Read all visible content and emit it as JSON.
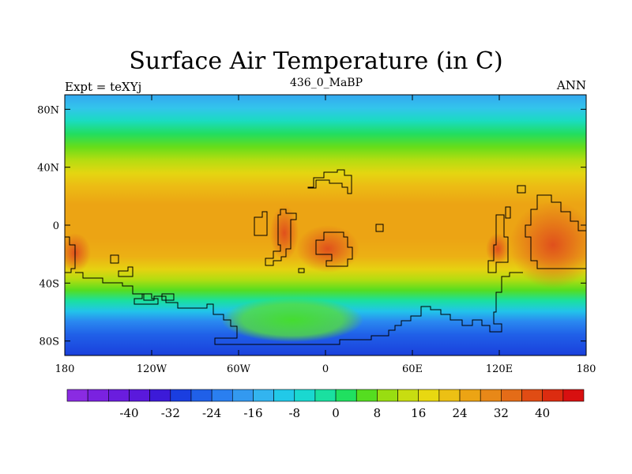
{
  "figure": {
    "title": "Surface Air Temperature (in C)",
    "left_label": "Expt = teXYj",
    "center_label": "436_0_MaBP",
    "right_label": "ANN"
  },
  "axes": {
    "lon_ticks": [
      {
        "label": "180",
        "lon": -180
      },
      {
        "label": "120W",
        "lon": -120
      },
      {
        "label": "60W",
        "lon": -60
      },
      {
        "label": "0",
        "lon": 0
      },
      {
        "label": "60E",
        "lon": 60
      },
      {
        "label": "120E",
        "lon": 120
      },
      {
        "label": "180",
        "lon": 180
      }
    ],
    "lat_ticks": [
      {
        "label": "80N",
        "lat": 80
      },
      {
        "label": "40N",
        "lat": 40
      },
      {
        "label": "0",
        "lat": 0
      },
      {
        "label": "40S",
        "lat": -40
      },
      {
        "label": "80S",
        "lat": -80
      }
    ],
    "lon_range": [
      -180,
      180
    ],
    "lat_range": [
      -90,
      90
    ]
  },
  "colorbar": {
    "colors": [
      "#8a2be2",
      "#7a22e0",
      "#6a1dde",
      "#5a19dc",
      "#3c1ad8",
      "#1a3ee0",
      "#2060e8",
      "#2a7ff0",
      "#3399f0",
      "#33b4ef",
      "#22c9e8",
      "#1ad8d0",
      "#1ae0a0",
      "#20e060",
      "#55dd20",
      "#99dd11",
      "#c8dd11",
      "#e8d811",
      "#ecc014",
      "#eca414",
      "#e88818",
      "#e46c18",
      "#e04c14",
      "#dc2c10",
      "#d81010"
    ],
    "labels": [
      {
        "text": "-40",
        "value": -40
      },
      {
        "text": "-32",
        "value": -32
      },
      {
        "text": "-24",
        "value": -24
      },
      {
        "text": "-16",
        "value": -16
      },
      {
        "text": "-8",
        "value": -8
      },
      {
        "text": "0",
        "value": 0
      },
      {
        "text": "8",
        "value": 8
      },
      {
        "text": "16",
        "value": 16
      },
      {
        "text": "24",
        "value": 24
      },
      {
        "text": "32",
        "value": 32
      },
      {
        "text": "40",
        "value": 40
      }
    ],
    "min": -52,
    "max": 48,
    "step": 4
  }
}
